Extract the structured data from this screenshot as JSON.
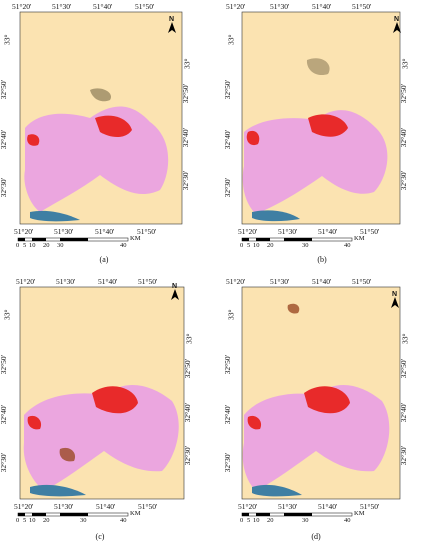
{
  "lon_labels": [
    "51°20'",
    "51°30'",
    "51°40'",
    "51°50'"
  ],
  "lat_labels_left": [
    "33°",
    "32°50'",
    "32°40'",
    "32°30'"
  ],
  "lat_labels_right": [
    "33°",
    "32°50'",
    "32°40'",
    "32°30'"
  ],
  "scale_ticks": [
    "0",
    "5",
    "10",
    "20",
    "30",
    "40"
  ],
  "scale_unit": "KM",
  "north_letter": "N",
  "panels": [
    {
      "caption": "(a)"
    },
    {
      "caption": "(b)"
    },
    {
      "caption": "(c)"
    },
    {
      "caption": "(d)"
    }
  ],
  "colors": {
    "background": "#fbe3b1",
    "urban": "#e82a2a",
    "flood_pink": "#e79be8",
    "vegetation": "#7a6a48",
    "water": "#3f7fa3",
    "brown": "#9b4a26"
  }
}
